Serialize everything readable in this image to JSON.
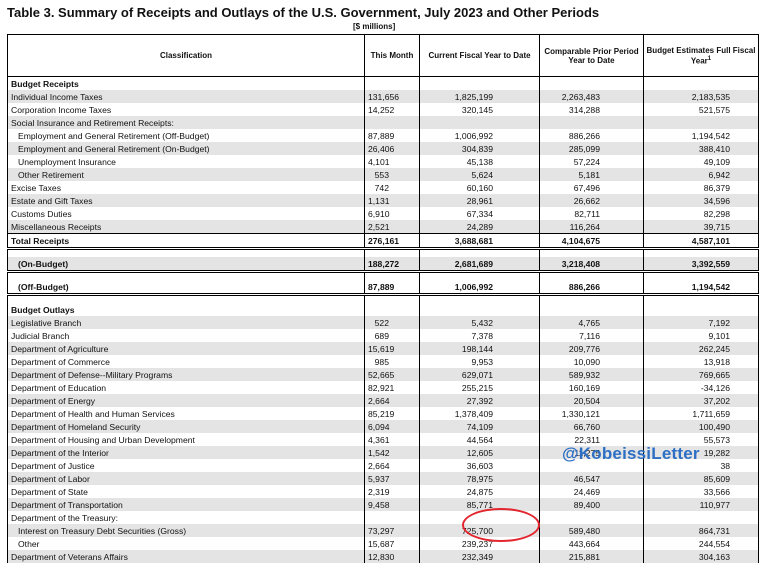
{
  "title": "Table 3. Summary of Receipts and Outlays of the U.S. Government, July 2023 and Other Periods",
  "units": "[$ millions]",
  "headers": {
    "classification": "Classification",
    "this_month": "This Month",
    "fytd": "Current Fiscal Year to Date",
    "prior": "Comparable Prior Period Year to Date",
    "budget": "Budget Estimates Full Fiscal Year",
    "budget_note": "1"
  },
  "rows": [
    {
      "type": "sec",
      "label": "Budget Receipts"
    },
    {
      "type": "shade",
      "label": "Individual Income Taxes",
      "v": [
        "131,656",
        "1,825,199",
        "2,263,483",
        "2,183,535"
      ]
    },
    {
      "type": "plain",
      "label": "Corporation Income Taxes",
      "v": [
        "14,252",
        "320,145",
        "314,288",
        "521,575"
      ]
    },
    {
      "type": "shade",
      "label": "Social Insurance and Retirement Receipts:"
    },
    {
      "type": "ind",
      "label": "Employment and General Retirement (Off-Budget)",
      "v": [
        "87,889",
        "1,006,992",
        "886,266",
        "1,194,542"
      ]
    },
    {
      "type": "ind shade",
      "label": "Employment and General Retirement (On-Budget)",
      "v": [
        "26,406",
        "304,839",
        "285,099",
        "388,410"
      ]
    },
    {
      "type": "ind",
      "label": "Unemployment Insurance",
      "v": [
        "4,101",
        "45,138",
        "57,224",
        "49,109"
      ]
    },
    {
      "type": "ind shade",
      "label": "Other Retirement",
      "v": [
        "553",
        "5,624",
        "5,181",
        "6,942"
      ]
    },
    {
      "type": "plain",
      "label": "Excise Taxes",
      "v": [
        "742",
        "60,160",
        "67,496",
        "86,379"
      ]
    },
    {
      "type": "shade",
      "label": "Estate and Gift Taxes",
      "v": [
        "1,131",
        "28,961",
        "26,662",
        "34,596"
      ]
    },
    {
      "type": "plain",
      "label": "Customs Duties",
      "v": [
        "6,910",
        "67,334",
        "82,711",
        "82,298"
      ]
    },
    {
      "type": "shade ul",
      "label": "Miscellaneous Receipts",
      "v": [
        "2,521",
        "24,289",
        "116,264",
        "39,715"
      ]
    },
    {
      "type": "bold dbl",
      "label": "Total Receipts",
      "v": [
        "276,161",
        "3,688,681",
        "4,104,675",
        "4,587,101"
      ]
    },
    {
      "type": "gap"
    },
    {
      "type": "bold shade ind dbl",
      "label": "(On-Budget)",
      "v": [
        "188,272",
        "2,681,689",
        "3,218,408",
        "3,392,559"
      ]
    },
    {
      "type": "gap"
    },
    {
      "type": "bold ind dbl",
      "label": "(Off-Budget)",
      "v": [
        "87,889",
        "1,006,992",
        "886,266",
        "1,194,542"
      ]
    },
    {
      "type": "gap"
    },
    {
      "type": "sec",
      "label": "Budget Outlays"
    },
    {
      "type": "shade",
      "label": "Legislative Branch",
      "v": [
        "522",
        "5,432",
        "4,765",
        "7,192"
      ]
    },
    {
      "type": "plain",
      "label": "Judicial Branch",
      "v": [
        "689",
        "7,378",
        "7,116",
        "9,101"
      ]
    },
    {
      "type": "shade",
      "label": "Department of Agriculture",
      "v": [
        "15,619",
        "198,144",
        "209,776",
        "262,245"
      ]
    },
    {
      "type": "plain",
      "label": "Department of Commerce",
      "v": [
        "985",
        "9,953",
        "10,090",
        "13,918"
      ]
    },
    {
      "type": "shade",
      "label": "Department of Defense--Military Programs",
      "v": [
        "52,665",
        "629,071",
        "589,932",
        "769,665"
      ]
    },
    {
      "type": "plain",
      "label": "Department of Education",
      "v": [
        "82,921",
        "255,215",
        "160,169",
        "-34,126"
      ]
    },
    {
      "type": "shade",
      "label": "Department of Energy",
      "v": [
        "2,664",
        "27,392",
        "20,504",
        "37,202"
      ]
    },
    {
      "type": "plain",
      "label": "Department of Health and Human Services",
      "v": [
        "85,219",
        "1,378,409",
        "1,330,121",
        "1,711,659"
      ]
    },
    {
      "type": "shade",
      "label": "Department of Homeland Security",
      "v": [
        "6,094",
        "74,109",
        "66,760",
        "100,490"
      ]
    },
    {
      "type": "plain",
      "label": "Department of Housing and Urban Development",
      "v": [
        "4,361",
        "44,564",
        "22,311",
        "55,573"
      ]
    },
    {
      "type": "shade",
      "label": "Department of the Interior",
      "v": [
        "1,542",
        "12,605",
        "11,275",
        "19,282"
      ]
    },
    {
      "type": "plain",
      "label": "Department of Justice",
      "v": [
        "2,664",
        "36,603",
        "",
        "38"
      ]
    },
    {
      "type": "shade",
      "label": "Department of Labor",
      "v": [
        "5,937",
        "78,975",
        "46,547",
        "85,609"
      ]
    },
    {
      "type": "plain",
      "label": "Department of State",
      "v": [
        "2,319",
        "24,875",
        "24,469",
        "33,566"
      ]
    },
    {
      "type": "shade",
      "label": "Department of Transportation",
      "v": [
        "9,458",
        "85,771",
        "89,400",
        "110,977"
      ]
    },
    {
      "type": "plain",
      "label": "Department of the Treasury:"
    },
    {
      "type": "ind shade",
      "label": "Interest on Treasury Debt Securities (Gross)",
      "v": [
        "73,297",
        "725,700",
        "589,480",
        "864,731"
      ]
    },
    {
      "type": "ind",
      "label": "Other",
      "v": [
        "15,687",
        "239,237",
        "443,664",
        "244,554"
      ]
    },
    {
      "type": "shade",
      "label": "Department of Veterans Affairs",
      "v": [
        "12,830",
        "232,349",
        "215,881",
        "304,163"
      ]
    }
  ],
  "watermark": "@KobeissiLetter",
  "highlight": {
    "row_label": "Interest on Treasury Debt Securities (Gross)",
    "value": "725,700",
    "color": "#e3262e"
  }
}
